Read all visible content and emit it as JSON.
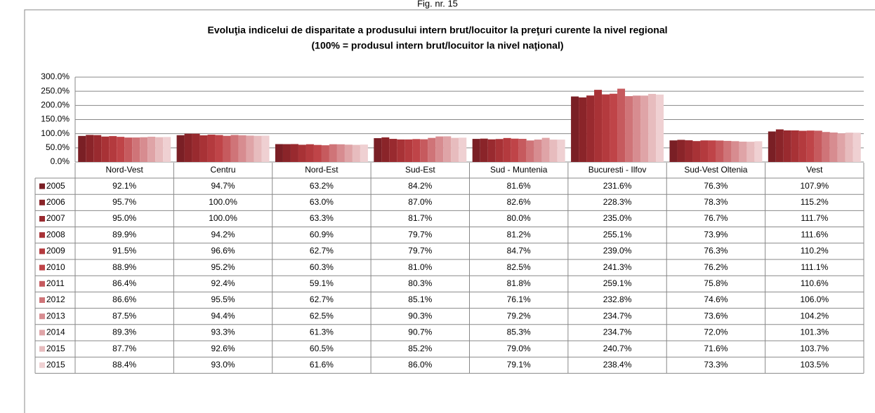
{
  "figure_label": "Fig. nr. 15",
  "chart_data": {
    "type": "bar",
    "title": "Evoluţia indicelui de disparitate a produsului intern brut/locuitor la preţuri curente la nivel regional",
    "subtitle": "(100% = produsul intern brut/locuitor la nivel naţional)",
    "categories": [
      "Nord-Vest",
      "Centru",
      "Nord-Est",
      "Sud-Est",
      "Sud - Muntenia",
      "Bucuresti - Ilfov",
      "Sud-Vest Oltenia",
      "Vest"
    ],
    "ylim": [
      0,
      300
    ],
    "yticks": [
      {
        "value": 0,
        "label": "0.0%"
      },
      {
        "value": 50,
        "label": "50.0%"
      },
      {
        "value": 100,
        "label": "100.0%"
      },
      {
        "value": 150,
        "label": "150.0%"
      },
      {
        "value": 200,
        "label": "200.0%"
      },
      {
        "value": 250,
        "label": "250.0%"
      },
      {
        "value": 300,
        "label": "300.0%"
      }
    ],
    "grid": true,
    "series": [
      {
        "name": "2005",
        "color": "#7a1f25",
        "values": [
          92.1,
          94.7,
          63.2,
          84.2,
          81.6,
          231.6,
          76.3,
          107.9
        ],
        "value_labels": [
          "92.1%",
          "94.7%",
          "63.2%",
          "84.2%",
          "81.6%",
          "231.6%",
          "76.3%",
          "107.9%"
        ]
      },
      {
        "name": "2006",
        "color": "#8a2429",
        "values": [
          95.7,
          100.0,
          63.0,
          87.0,
          82.6,
          228.3,
          78.3,
          115.2
        ],
        "value_labels": [
          "95.7%",
          "100.0%",
          "63.0%",
          "87.0%",
          "82.6%",
          "228.3%",
          "78.3%",
          "115.2%"
        ]
      },
      {
        "name": "2007",
        "color": "#992a2f",
        "values": [
          95.0,
          100.0,
          63.3,
          81.7,
          80.0,
          235.0,
          76.7,
          111.7
        ],
        "value_labels": [
          "95.0%",
          "100.0%",
          "63.3%",
          "81.7%",
          "80.0%",
          "235.0%",
          "76.7%",
          "111.7%"
        ]
      },
      {
        "name": "2008",
        "color": "#a83236",
        "values": [
          89.9,
          94.2,
          60.9,
          79.7,
          81.2,
          255.1,
          73.9,
          111.6
        ],
        "value_labels": [
          "89.9%",
          "94.2%",
          "60.9%",
          "79.7%",
          "81.2%",
          "255.1%",
          "73.9%",
          "111.6%"
        ]
      },
      {
        "name": "2009",
        "color": "#b43a3e",
        "values": [
          91.5,
          96.6,
          62.7,
          79.7,
          84.7,
          239.0,
          76.3,
          110.2
        ],
        "value_labels": [
          "91.5%",
          "96.6%",
          "62.7%",
          "79.7%",
          "84.7%",
          "239.0%",
          "76.3%",
          "110.2%"
        ]
      },
      {
        "name": "2010",
        "color": "#bf4448",
        "values": [
          88.9,
          95.2,
          60.3,
          81.0,
          82.5,
          241.3,
          76.2,
          111.1
        ],
        "value_labels": [
          "88.9%",
          "95.2%",
          "60.3%",
          "81.0%",
          "82.5%",
          "241.3%",
          "76.2%",
          "111.1%"
        ]
      },
      {
        "name": "2011",
        "color": "#c65a5e",
        "values": [
          86.4,
          92.4,
          59.1,
          80.3,
          81.8,
          259.1,
          75.8,
          110.6
        ],
        "value_labels": [
          "86.4%",
          "92.4%",
          "59.1%",
          "80.3%",
          "81.8%",
          "259.1%",
          "75.8%",
          "110.6%"
        ]
      },
      {
        "name": "2012",
        "color": "#cf7478",
        "values": [
          86.6,
          95.5,
          62.7,
          85.1,
          76.1,
          232.8,
          74.6,
          106.0
        ],
        "value_labels": [
          "86.6%",
          "95.5%",
          "62.7%",
          "85.1%",
          "76.1%",
          "232.8%",
          "74.6%",
          "106.0%"
        ]
      },
      {
        "name": "2013",
        "color": "#d78c90",
        "values": [
          87.5,
          94.4,
          62.5,
          90.3,
          79.2,
          234.7,
          73.6,
          104.2
        ],
        "value_labels": [
          "87.5%",
          "94.4%",
          "62.5%",
          "90.3%",
          "79.2%",
          "234.7%",
          "73.6%",
          "104.2%"
        ]
      },
      {
        "name": "2014",
        "color": "#dfa4a7",
        "values": [
          89.3,
          93.3,
          61.3,
          90.7,
          85.3,
          234.7,
          72.0,
          101.3
        ],
        "value_labels": [
          "89.3%",
          "93.3%",
          "61.3%",
          "90.7%",
          "85.3%",
          "234.7%",
          "72.0%",
          "101.3%"
        ]
      },
      {
        "name": "2015",
        "color": "#e7bcbe",
        "values": [
          87.7,
          92.6,
          60.5,
          85.2,
          79.0,
          240.7,
          71.6,
          103.7
        ],
        "value_labels": [
          "87.7%",
          "92.6%",
          "60.5%",
          "85.2%",
          "79.0%",
          "240.7%",
          "71.6%",
          "103.7%"
        ]
      },
      {
        "name": "2015",
        "color": "#efd0d2",
        "values": [
          88.4,
          93.0,
          61.6,
          86.0,
          79.1,
          238.4,
          73.3,
          103.5
        ],
        "value_labels": [
          "88.4%",
          "93.0%",
          "61.6%",
          "86.0%",
          "79.1%",
          "238.4%",
          "73.3%",
          "103.5%"
        ]
      }
    ]
  }
}
